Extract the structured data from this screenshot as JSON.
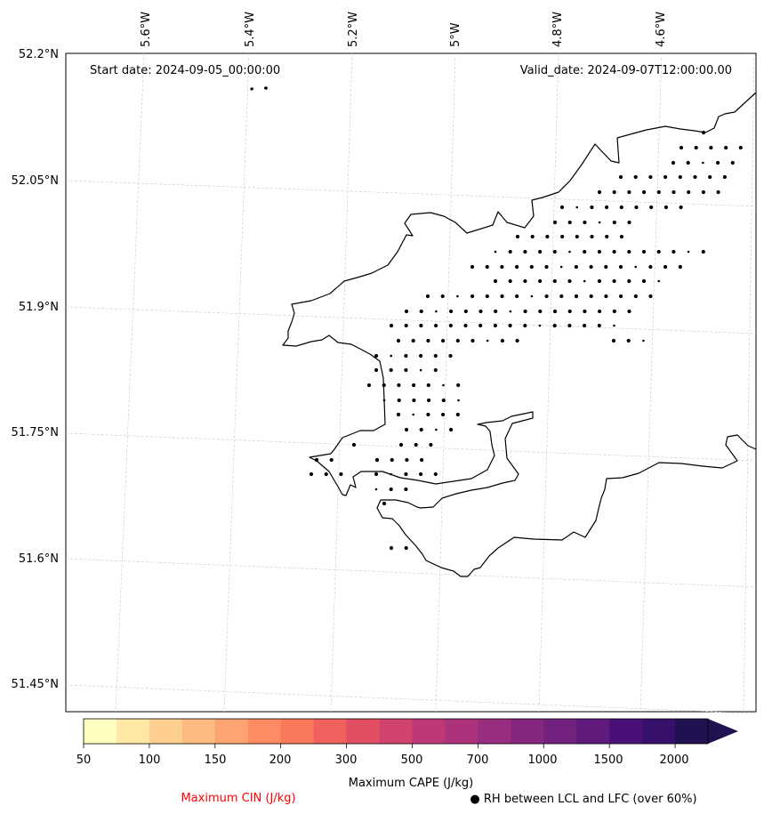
{
  "map": {
    "start_label": "Start date: 2024-09-05_00:00:00",
    "valid_label": "Valid_date: 2024-09-07T12:00:00.00",
    "lon_labels": [
      "5.6°W",
      "5.4°W",
      "5.2°W",
      "5°W",
      "4.8°W",
      "4.6°W"
    ],
    "lat_labels": [
      "52.2°N",
      "52.05°N",
      "51.9°N",
      "51.75°N",
      "51.6°N",
      "51.45°N"
    ],
    "coast_color": "#000000",
    "grid_color": "#c8c8c8"
  },
  "colorbar": {
    "tick_labels": [
      "50",
      "100",
      "150",
      "200",
      "300",
      "500",
      "700",
      "1000",
      "1500",
      "2000"
    ],
    "colors": [
      "#ffffc2",
      "#fee8a4",
      "#fecf8e",
      "#febb7f",
      "#fea471",
      "#fd8c62",
      "#f97a5b",
      "#f0605d",
      "#e24f63",
      "#d1426d",
      "#bf3876",
      "#ab327b",
      "#982d80",
      "#85267f",
      "#72217e",
      "#5f1a7c",
      "#4a1077",
      "#36106b",
      "#221150"
    ],
    "cape_label": "Maximum CAPE (J/kg)",
    "cin_label": "Maximum CIN (J/kg)",
    "cin_color": "#ff0000",
    "rh_label": "● RH between LCL and LFC (over 60%)"
  }
}
